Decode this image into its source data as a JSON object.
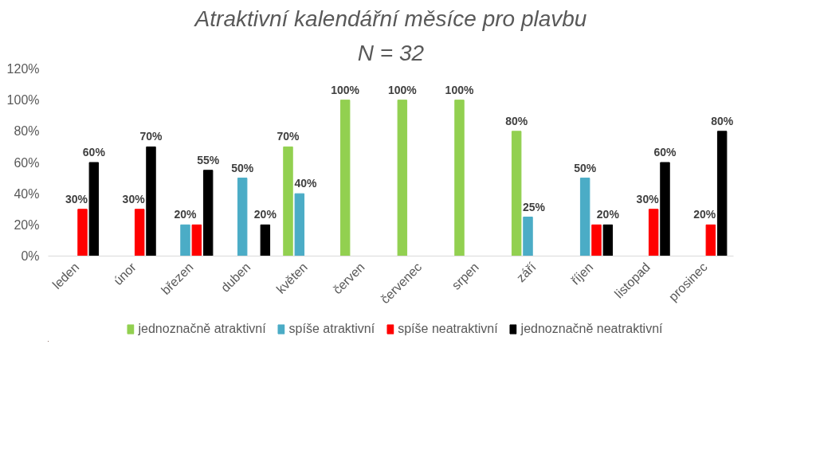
{
  "chart_data": {
    "type": "bar",
    "title": "Atraktivní kalendářní měsíce pro plavbu",
    "subtitle": "N = 32",
    "categories": [
      "leden",
      "únor",
      "březen",
      "duben",
      "květen",
      "červen",
      "červenec",
      "srpen",
      "září",
      "říjen",
      "listopad",
      "prosinec"
    ],
    "series": [
      {
        "name": "jednoznačně atraktivní",
        "color": "#92d050",
        "values": [
          null,
          null,
          null,
          null,
          70,
          100,
          100,
          100,
          80,
          null,
          null,
          null
        ],
        "value_labels": [
          null,
          null,
          null,
          null,
          "70%",
          "100%",
          "100%",
          "100%",
          "80%",
          null,
          null,
          null
        ]
      },
      {
        "name": "spíše atraktivní",
        "color": "#4bacc6",
        "values": [
          null,
          null,
          20,
          50,
          40,
          null,
          null,
          null,
          25,
          50,
          null,
          null
        ],
        "value_labels": [
          null,
          null,
          "20%",
          "50%",
          "40%",
          null,
          null,
          null,
          "25%",
          "50%",
          null,
          null
        ]
      },
      {
        "name": "spíše neatraktivní",
        "color": "#ff0000",
        "values": [
          30,
          30,
          20,
          null,
          null,
          null,
          null,
          null,
          null,
          20,
          30,
          20
        ],
        "value_labels": [
          "30%",
          "30%",
          null,
          null,
          null,
          null,
          null,
          null,
          null,
          null,
          "30%",
          "20%"
        ]
      },
      {
        "name": "jednoznačně neatraktivní",
        "color": "#000000",
        "values": [
          60,
          70,
          55,
          20,
          null,
          null,
          null,
          null,
          null,
          20,
          60,
          80
        ],
        "value_labels": [
          "60%",
          "70%",
          "55%",
          "20%",
          null,
          null,
          null,
          null,
          null,
          "20%",
          "60%",
          "80%"
        ]
      }
    ],
    "ylim": [
      0,
      120
    ],
    "yticks": [
      {
        "value": 0,
        "label": "0%"
      },
      {
        "value": 20,
        "label": "20%"
      },
      {
        "value": 40,
        "label": "40%"
      },
      {
        "value": 60,
        "label": "60%"
      },
      {
        "value": 80,
        "label": "80%"
      },
      {
        "value": 100,
        "label": "100%"
      },
      {
        "value": 120,
        "label": "120%"
      }
    ],
    "grid": false,
    "legend": "bottom"
  }
}
